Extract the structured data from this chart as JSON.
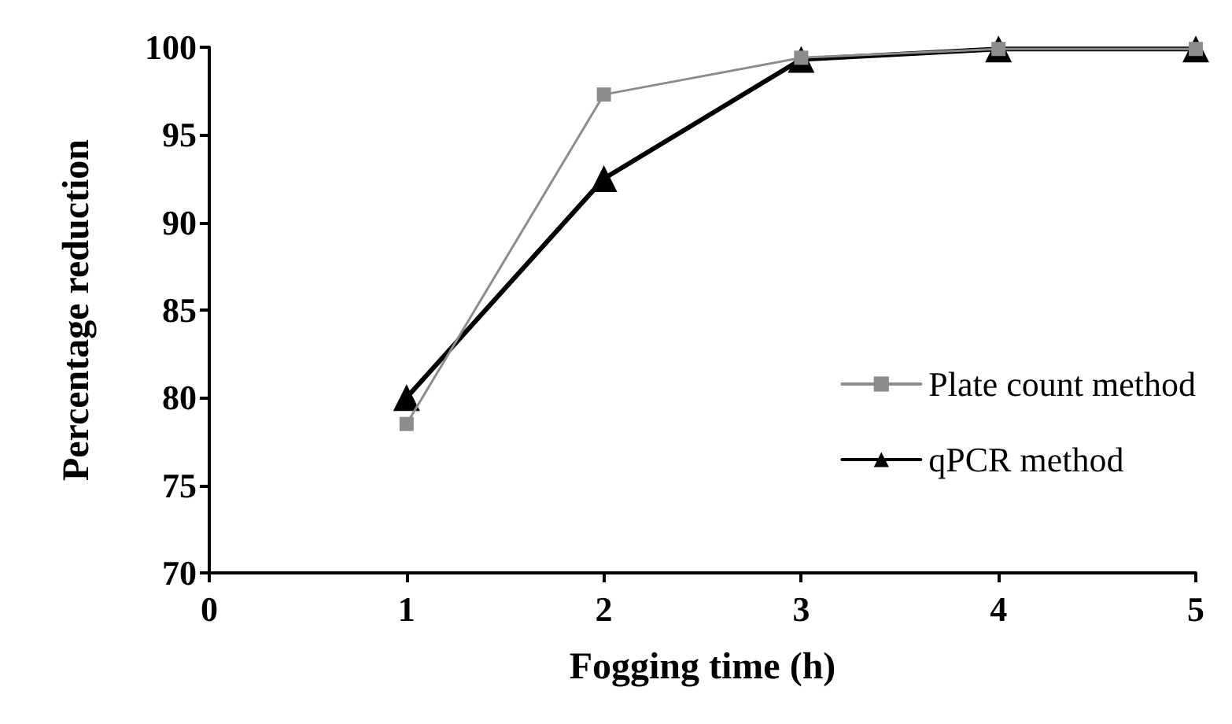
{
  "chart_data": {
    "type": "line",
    "xlabel": "Fogging time (h)",
    "ylabel": "Percentage reduction",
    "x": [
      1,
      2,
      3,
      4,
      5
    ],
    "xlim": [
      0,
      5
    ],
    "xticks": [
      0,
      1,
      2,
      3,
      4,
      5
    ],
    "ylim": [
      70,
      100
    ],
    "yticks": [
      70,
      75,
      80,
      85,
      90,
      95,
      100
    ],
    "grid": false,
    "legend": "right",
    "series": [
      {
        "name": "Plate count method",
        "color": "#8c8c8c",
        "marker": "square",
        "values": [
          78.5,
          97.3,
          99.4,
          99.9,
          99.9
        ]
      },
      {
        "name": "qPCR method",
        "color": "#000000",
        "marker": "triangle",
        "values": [
          80,
          92.5,
          99.3,
          99.9,
          99.9
        ]
      }
    ]
  }
}
